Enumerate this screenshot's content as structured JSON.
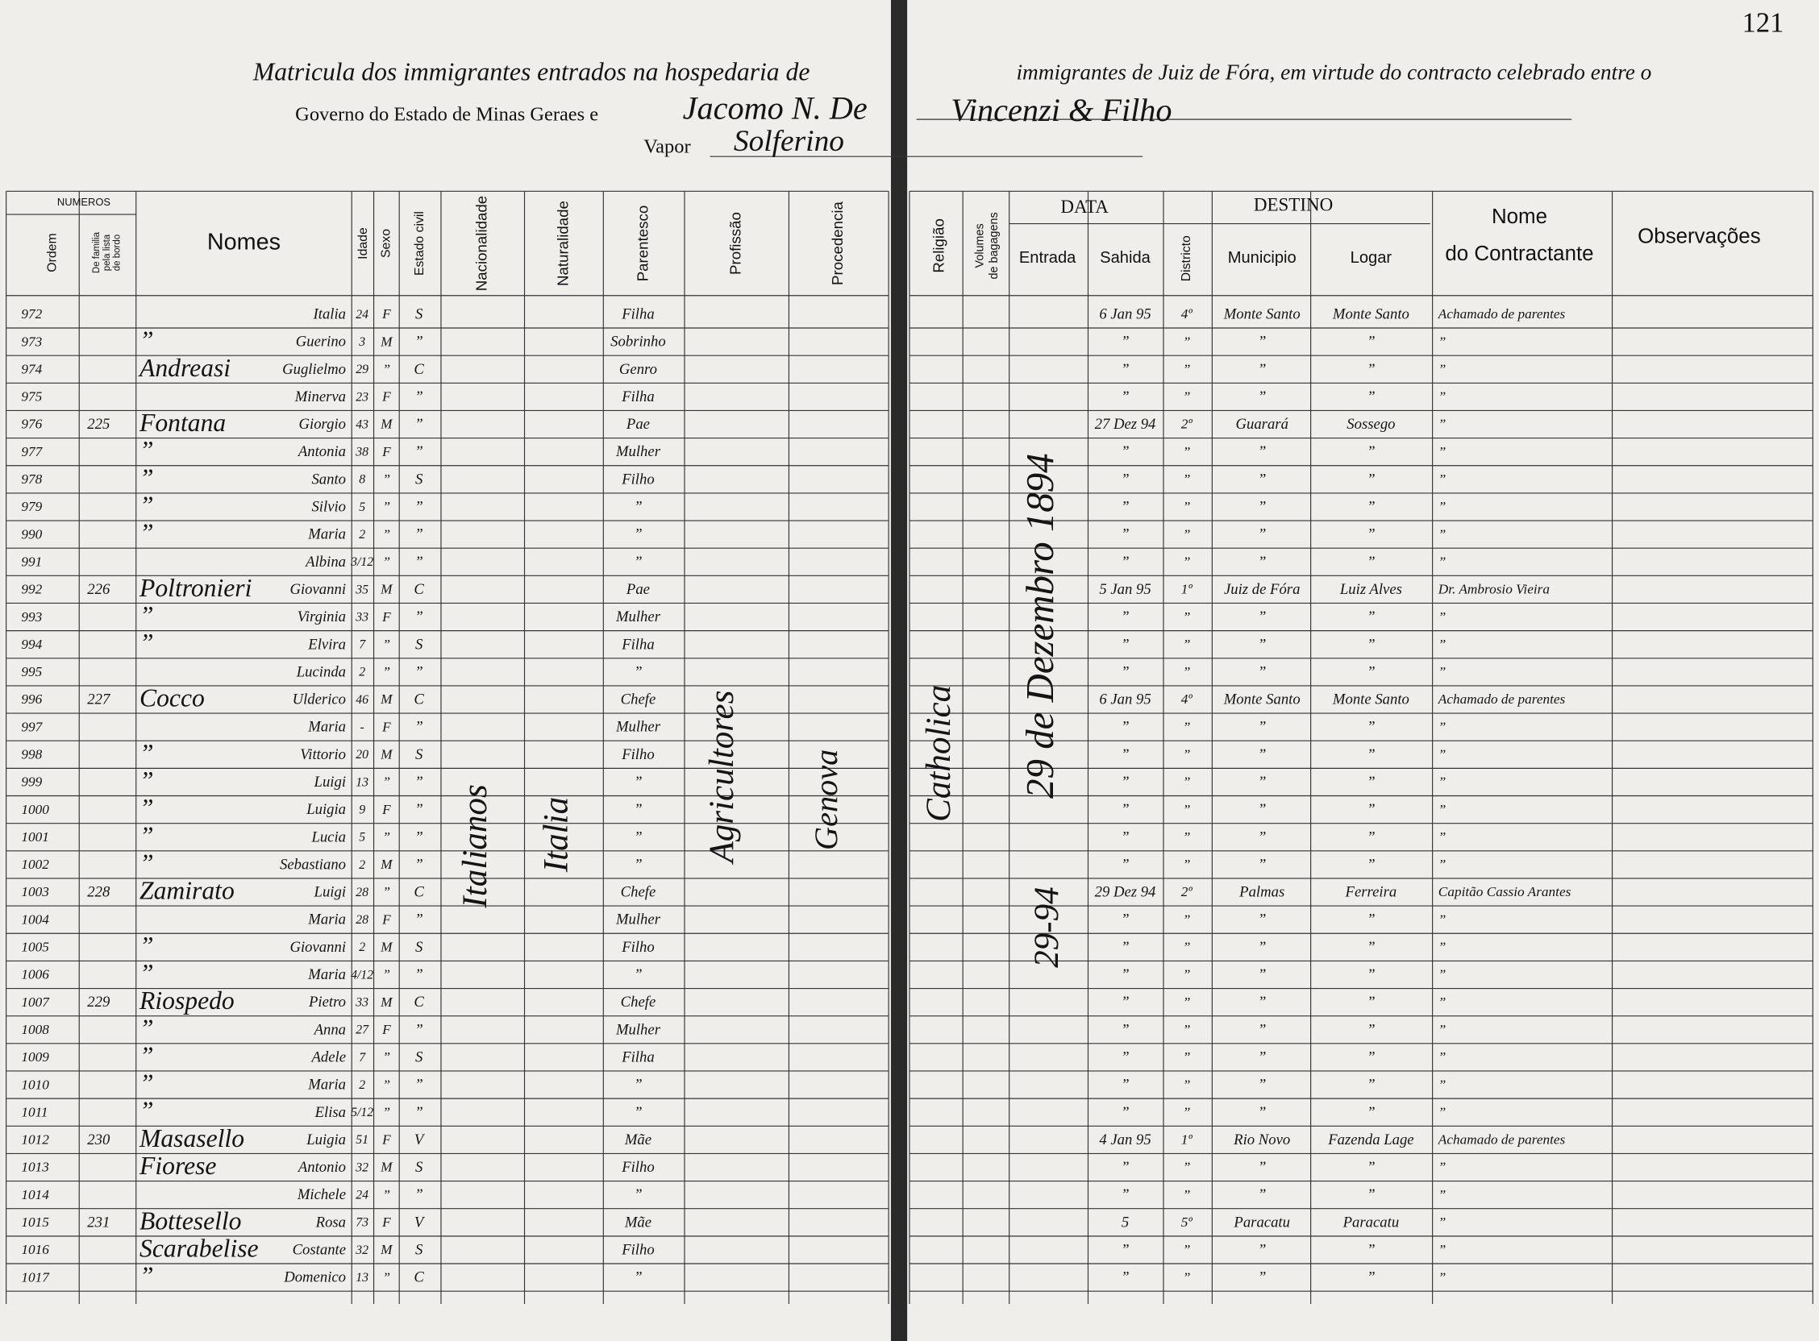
{
  "page_number": 121,
  "header": {
    "line1_left": "Matricula dos immigrantes entrados na hospedaria de",
    "line1_right": "immigrantes de Juiz de Fóra, em virtude do contracto celebrado entre o",
    "line2_printed": "Governo do Estado de Minas Geraes e",
    "line2_handwritten_left": "Jacomo N. De",
    "line2_handwritten_right": "Vincenzi & Filho",
    "vapor_label": "Vapor",
    "vapor_name": "Solferino"
  },
  "columns": {
    "numeros": "NUMEROS",
    "ordem": "Ordem",
    "familia": [
      "De familia",
      "pela lista",
      "de bordo"
    ],
    "nomes": "Nomes",
    "idade": "Idade",
    "sexo": "Sexo",
    "civil": "Estado civil",
    "nacionalidade": "Nacionalidade",
    "naturalidade": "Naturalidade",
    "parentesco": "Parentesco",
    "profissao": "Profissão",
    "procedencia": "Procedencia",
    "religiao": "Religião",
    "volumes": [
      "Volumes",
      "de bagagens"
    ],
    "data": "DATA",
    "entrada": "Entrada",
    "sahida": "Sahida",
    "destino": "DESTINO",
    "districto": "Districto",
    "municipio": "Municipio",
    "logar": "Logar",
    "contractante": [
      "Nome",
      "do Contractante"
    ],
    "observacoes": "Observações"
  },
  "rows": [
    [
      "972",
      null,
      null,
      "Italia",
      "24",
      "F",
      "S",
      "Filha",
      "6 Jan 95",
      "4º",
      "Monte Santo",
      "Monte Santo",
      "Achamado de parentes"
    ],
    [
      "973",
      null,
      "”",
      "Guerino",
      "3",
      "M",
      "”",
      "Sobrinho",
      "”",
      "”",
      "”",
      "”",
      "”"
    ],
    [
      "974",
      null,
      "Andreasi",
      "Guglielmo",
      "29",
      "”",
      "C",
      "Genro",
      "”",
      "”",
      "”",
      "”",
      "”"
    ],
    [
      "975",
      null,
      null,
      "Minerva",
      "23",
      "F",
      "”",
      "Filha",
      "”",
      "”",
      "”",
      "”",
      "”"
    ],
    [
      "976",
      "225",
      "Fontana",
      "Giorgio",
      "43",
      "M",
      "”",
      "Pae",
      "27 Dez 94",
      "2º",
      "Guarará",
      "Sossego",
      "”"
    ],
    [
      "977",
      null,
      "”",
      "Antonia",
      "38",
      "F",
      "”",
      "Mulher",
      "”",
      "”",
      "”",
      "”",
      "”"
    ],
    [
      "978",
      null,
      "”",
      "Santo",
      "8",
      "”",
      "S",
      "Filho",
      "”",
      "”",
      "”",
      "”",
      "”"
    ],
    [
      "979",
      null,
      "”",
      "Silvio",
      "5",
      "”",
      "”",
      "”",
      "”",
      "”",
      "”",
      "”",
      "”"
    ],
    [
      "990",
      null,
      "”",
      "Maria",
      "2",
      "”",
      "”",
      "”",
      "”",
      "”",
      "”",
      "”",
      "”"
    ],
    [
      "991",
      null,
      null,
      "Albina",
      "3/12",
      "”",
      "”",
      "”",
      "”",
      "”",
      "”",
      "”",
      "”"
    ],
    [
      "992",
      "226",
      "Poltronieri",
      "Giovanni",
      "35",
      "M",
      "C",
      "Pae",
      "5 Jan 95",
      "1º",
      "Juiz de Fóra",
      "Luiz Alves",
      "Dr. Ambrosio Vieira"
    ],
    [
      "993",
      null,
      "”",
      "Virginia",
      "33",
      "F",
      "”",
      "Mulher",
      "”",
      "”",
      "”",
      "”",
      "”"
    ],
    [
      "994",
      null,
      "”",
      "Elvira",
      "7",
      "”",
      "S",
      "Filha",
      "”",
      "”",
      "”",
      "”",
      "”"
    ],
    [
      "995",
      null,
      null,
      "Lucinda",
      "2",
      "”",
      "”",
      "”",
      "”",
      "”",
      "”",
      "”",
      "”"
    ],
    [
      "996",
      "227",
      "Cocco",
      "Ulderico",
      "46",
      "M",
      "C",
      "Chefe",
      "6 Jan 95",
      "4º",
      "Monte Santo",
      "Monte Santo",
      "Achamado de parentes"
    ],
    [
      "997",
      null,
      null,
      "Maria",
      "-",
      "F",
      "”",
      "Mulher",
      "”",
      "”",
      "”",
      "”",
      "”"
    ],
    [
      "998",
      null,
      "”",
      "Vittorio",
      "20",
      "M",
      "S",
      "Filho",
      "”",
      "”",
      "”",
      "”",
      "”"
    ],
    [
      "999",
      null,
      "”",
      "Luigi",
      "13",
      "”",
      "”",
      "”",
      "”",
      "”",
      "”",
      "”",
      "”"
    ],
    [
      "1000",
      null,
      "”",
      "Luigia",
      "9",
      "F",
      "”",
      "”",
      "”",
      "”",
      "”",
      "”",
      "”"
    ],
    [
      "1001",
      null,
      "”",
      "Lucia",
      "5",
      "”",
      "”",
      "”",
      "”",
      "”",
      "”",
      "”",
      "”"
    ],
    [
      "1002",
      null,
      "”",
      "Sebastiano",
      "2",
      "M",
      "”",
      "”",
      "”",
      "”",
      "”",
      "”",
      "”"
    ],
    [
      "1003",
      "228",
      "Zamirato",
      "Luigi",
      "28",
      "”",
      "C",
      "Chefe",
      "29 Dez 94",
      "2º",
      "Palmas",
      "Ferreira",
      "Capitão Cassio Arantes"
    ],
    [
      "1004",
      null,
      null,
      "Maria",
      "28",
      "F",
      "”",
      "Mulher",
      "”",
      "”",
      "”",
      "”",
      "”"
    ],
    [
      "1005",
      null,
      "”",
      "Giovanni",
      "2",
      "M",
      "S",
      "Filho",
      "”",
      "”",
      "”",
      "”",
      "”"
    ],
    [
      "1006",
      null,
      "”",
      "Maria",
      "4/12",
      "”",
      "”",
      "”",
      "”",
      "”",
      "”",
      "”",
      "”"
    ],
    [
      "1007",
      "229",
      "Riospedo",
      "Pietro",
      "33",
      "M",
      "C",
      "Chefe",
      "”",
      "”",
      "”",
      "”",
      "”"
    ],
    [
      "1008",
      null,
      "”",
      "Anna",
      "27",
      "F",
      "”",
      "Mulher",
      "”",
      "”",
      "”",
      "”",
      "”"
    ],
    [
      "1009",
      null,
      "”",
      "Adele",
      "7",
      "”",
      "S",
      "Filha",
      "”",
      "”",
      "”",
      "”",
      "”"
    ],
    [
      "1010",
      null,
      "”",
      "Maria",
      "2",
      "”",
      "”",
      "”",
      "”",
      "”",
      "”",
      "”",
      "”"
    ],
    [
      "1011",
      null,
      "”",
      "Elisa",
      "5/12",
      "”",
      "”",
      "”",
      "”",
      "”",
      "”",
      "”",
      "”"
    ],
    [
      "1012",
      "230",
      "Masasello",
      "Luigia",
      "51",
      "F",
      "V",
      "Mãe",
      "4 Jan 95",
      "1º",
      "Rio Novo",
      "Fazenda Lage",
      "Achamado de parentes"
    ],
    [
      "1013",
      null,
      "Fiorese",
      "Antonio",
      "32",
      "M",
      "S",
      "Filho",
      "”",
      "”",
      "”",
      "”",
      "”"
    ],
    [
      "1014",
      null,
      null,
      "Michele",
      "24",
      "”",
      "”",
      "”",
      "”",
      "”",
      "”",
      "”",
      "”"
    ],
    [
      "1015",
      "231",
      "Bottesello",
      "Rosa",
      "73",
      "F",
      "V",
      "Mãe",
      "5",
      "5º",
      "Paracatu",
      "Paracatu",
      "”"
    ],
    [
      "1016",
      null,
      "Scarabelise",
      "Costante",
      "32",
      "M",
      "S",
      "Filho",
      "”",
      "”",
      "”",
      "”",
      "”"
    ],
    [
      "1017",
      null,
      "”",
      "Domenico",
      "13",
      "”",
      "C",
      "”",
      "”",
      "”",
      "”",
      "”",
      "”"
    ]
  ],
  "spanning": {
    "nacionalidade": "Italianos",
    "naturalidade": "Italia",
    "profissao": "Agricultores",
    "procedencia": "Genova",
    "religiao": "Catholica",
    "entrada": "29 de Dezembro 1894",
    "entrada_short": "29-94"
  }
}
